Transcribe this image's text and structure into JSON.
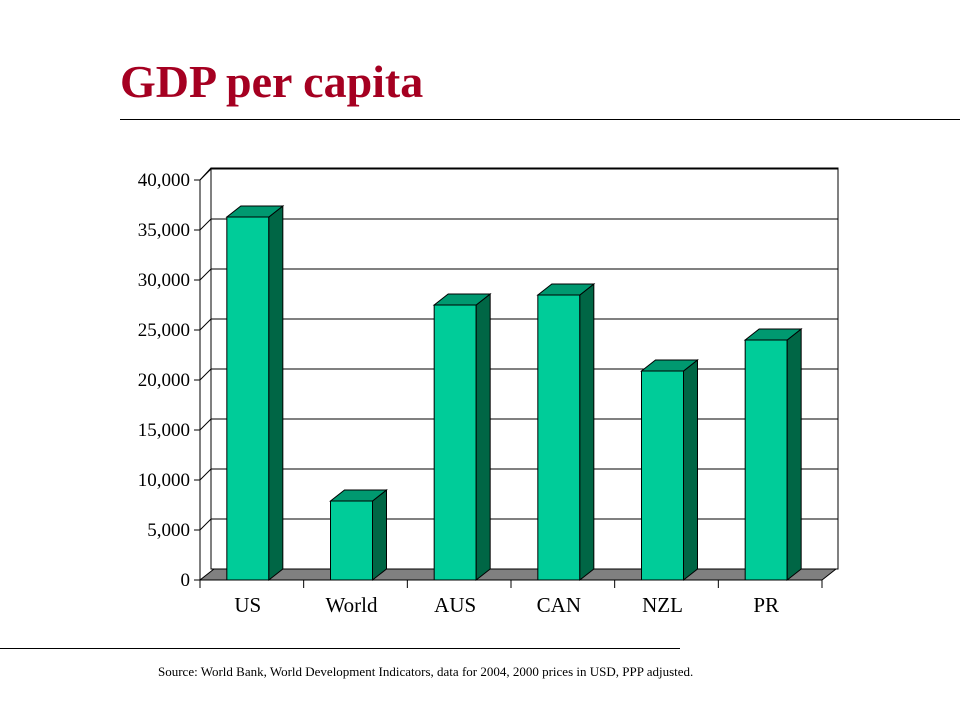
{
  "slide": {
    "title": "GDP per capita",
    "source": "Source:  World Bank, World Development Indicators, data for 2004, 2000 prices in USD, PPP adjusted."
  },
  "colors": {
    "title": "#a50021",
    "bar_front": "#00cc99",
    "bar_side": "#006645",
    "bar_top": "#009970",
    "floor": "#808080"
  },
  "chart_data": {
    "type": "bar",
    "style": "3d-column",
    "categories": [
      "US",
      "World",
      "AUS",
      "CAN",
      "NZL",
      "PR"
    ],
    "values": [
      36300,
      7900,
      27500,
      28500,
      20900,
      24000
    ],
    "y_ticks": [
      "0",
      "5,000",
      "10,000",
      "15,000",
      "20,000",
      "25,000",
      "30,000",
      "35,000",
      "40,000"
    ],
    "ylim": [
      0,
      40000
    ],
    "ystep": 5000,
    "grid": true,
    "legend": "none",
    "title": "",
    "xlabel": "",
    "ylabel": ""
  }
}
